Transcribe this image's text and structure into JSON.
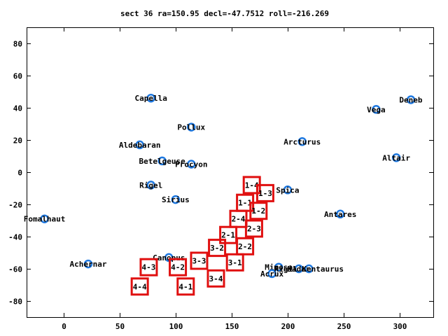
{
  "chart_data": {
    "type": "scatter",
    "title": "sect 36 ra=150.95 decl=-47.7512 roll=-216.269",
    "xlim": [
      -33,
      330
    ],
    "ylim": [
      -90,
      90
    ],
    "xticks": [
      0,
      50,
      100,
      150,
      200,
      250,
      300
    ],
    "yticks": [
      -80,
      -60,
      -40,
      -20,
      0,
      20,
      40,
      60,
      80
    ],
    "grid": false,
    "colors": {
      "star": "#1e78e0",
      "box": "#e01010",
      "axis": "#000000"
    },
    "stars": [
      {
        "name": "Capella",
        "x": 78,
        "y": 46
      },
      {
        "name": "Pollux",
        "x": 114,
        "y": 28
      },
      {
        "name": "Aldebaran",
        "x": 68,
        "y": 17
      },
      {
        "name": "Betelgeuse",
        "x": 88,
        "y": 7
      },
      {
        "name": "Procyon",
        "x": 114,
        "y": 5
      },
      {
        "name": "Rigel",
        "x": 78,
        "y": -8
      },
      {
        "name": "Sirius",
        "x": 100,
        "y": -17
      },
      {
        "name": "Fomalhaut",
        "x": -17,
        "y": -29
      },
      {
        "name": "Achernar",
        "x": 22,
        "y": -57
      },
      {
        "name": "Canopus",
        "x": 94,
        "y": -53
      },
      {
        "name": "Arcturus",
        "x": 213,
        "y": 19
      },
      {
        "name": "Spica",
        "x": 200,
        "y": -11
      },
      {
        "name": "Antares",
        "x": 247,
        "y": -26
      },
      {
        "name": "Vega",
        "x": 279,
        "y": 39
      },
      {
        "name": "Deneb",
        "x": 310,
        "y": 45
      },
      {
        "name": "Altair",
        "x": 297,
        "y": 9
      },
      {
        "name": "Mimosa",
        "x": 192,
        "y": -59
      },
      {
        "name": "Acrux",
        "x": 186,
        "y": -63
      },
      {
        "name": "Hadar",
        "x": 210,
        "y": -60
      },
      {
        "name": "Rigil Kentaurus",
        "x": 219,
        "y": -60
      }
    ],
    "sections": [
      {
        "label": "1-4",
        "x": 168,
        "y": -8
      },
      {
        "label": "1-3",
        "x": 180,
        "y": -13
      },
      {
        "label": "1-1",
        "x": 162,
        "y": -19
      },
      {
        "label": "1-2",
        "x": 174,
        "y": -24
      },
      {
        "label": "2-4",
        "x": 156,
        "y": -29
      },
      {
        "label": "2-3",
        "x": 170,
        "y": -35
      },
      {
        "label": "2-1",
        "x": 147,
        "y": -39
      },
      {
        "label": "2-2",
        "x": 162,
        "y": -46
      },
      {
        "label": "3-2",
        "x": 137,
        "y": -47
      },
      {
        "label": "3-1",
        "x": 153,
        "y": -56
      },
      {
        "label": "3-3",
        "x": 121,
        "y": -55
      },
      {
        "label": "3-4",
        "x": 136,
        "y": -66
      },
      {
        "label": "4-3",
        "x": 76,
        "y": -59
      },
      {
        "label": "4-2",
        "x": 102,
        "y": -59
      },
      {
        "label": "4-4",
        "x": 68,
        "y": -71
      },
      {
        "label": "4-1",
        "x": 109,
        "y": -71
      }
    ]
  }
}
